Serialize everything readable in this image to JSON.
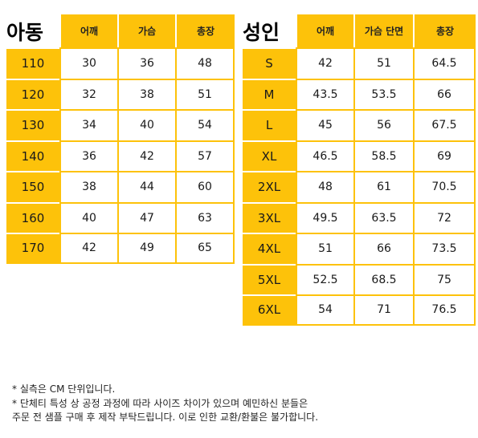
{
  "kids": {
    "title": "아동",
    "headers": [
      "어깨",
      "가슴",
      "총장"
    ],
    "rows": [
      {
        "size": "110",
        "values": [
          "30",
          "36",
          "48"
        ]
      },
      {
        "size": "120",
        "values": [
          "32",
          "38",
          "51"
        ]
      },
      {
        "size": "130",
        "values": [
          "34",
          "40",
          "54"
        ]
      },
      {
        "size": "140",
        "values": [
          "36",
          "42",
          "57"
        ]
      },
      {
        "size": "150",
        "values": [
          "38",
          "44",
          "60"
        ]
      },
      {
        "size": "160",
        "values": [
          "40",
          "47",
          "63"
        ]
      },
      {
        "size": "170",
        "values": [
          "42",
          "49",
          "65"
        ]
      }
    ]
  },
  "adult": {
    "title": "성인",
    "headers": [
      "어깨",
      "가슴 단면",
      "총장"
    ],
    "rows": [
      {
        "size": "S",
        "values": [
          "42",
          "51",
          "64.5"
        ]
      },
      {
        "size": "M",
        "values": [
          "43.5",
          "53.5",
          "66"
        ]
      },
      {
        "size": "L",
        "values": [
          "45",
          "56",
          "67.5"
        ]
      },
      {
        "size": "XL",
        "values": [
          "46.5",
          "58.5",
          "69"
        ]
      },
      {
        "size": "2XL",
        "values": [
          "48",
          "61",
          "70.5"
        ]
      },
      {
        "size": "3XL",
        "values": [
          "49.5",
          "63.5",
          "72"
        ]
      },
      {
        "size": "4XL",
        "values": [
          "51",
          "66",
          "73.5"
        ]
      },
      {
        "size": "5XL",
        "values": [
          "52.5",
          "68.5",
          "75"
        ]
      },
      {
        "size": "6XL",
        "values": [
          "54",
          "71",
          "76.5"
        ]
      }
    ]
  },
  "notes": [
    "* 실측은 CM 단위입니다.",
    "* 단체티 특성 상 공정 과정에 따라 사이즈 차이가 있으며 예민하신 분들은",
    "주문 전 샘플 구매 후 제작 부탁드립니다. 이로 인한 교환/환불은 불가합니다."
  ],
  "colors": {
    "accent": "#FDC20A"
  }
}
